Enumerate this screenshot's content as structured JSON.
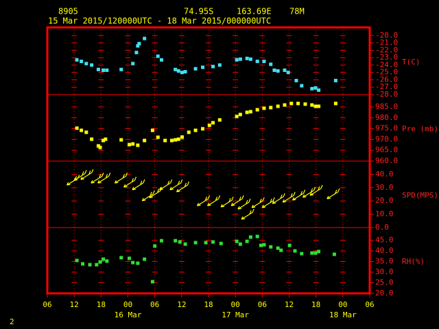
{
  "header": {
    "station": "8905",
    "lat": "74.95S",
    "lon": "163.69E",
    "elev": "78M",
    "period": "15 Mar 2015/120000UTC - 18 Mar 2015/000000UTC"
  },
  "page_number": "2",
  "chart_data": {
    "type": "meteogram",
    "xlim": [
      6,
      78
    ],
    "xticks": [
      {
        "value": 6,
        "label": "06"
      },
      {
        "value": 12,
        "label": "12"
      },
      {
        "value": 18,
        "label": "18"
      },
      {
        "value": 24,
        "label": "00"
      },
      {
        "value": 30,
        "label": "06"
      },
      {
        "value": 36,
        "label": "12"
      },
      {
        "value": 42,
        "label": "18"
      },
      {
        "value": 48,
        "label": "00"
      },
      {
        "value": 54,
        "label": "06"
      },
      {
        "value": 60,
        "label": "12"
      },
      {
        "value": 66,
        "label": "18"
      },
      {
        "value": 72,
        "label": "00"
      },
      {
        "value": 78,
        "label": "06"
      }
    ],
    "date_ticks": [
      {
        "value": 24,
        "label": "16 Mar"
      },
      {
        "value": 48,
        "label": "17 Mar"
      },
      {
        "value": 72,
        "label": "18 Mar"
      }
    ],
    "panels": [
      {
        "name": "T(C)",
        "kind": "dots",
        "color": "#40e0f0",
        "ylim": [
          -28,
          -18.9
        ],
        "yticks": [
          {
            "value": -20,
            "label": "-20.0"
          },
          {
            "value": -21,
            "label": "-21.0"
          },
          {
            "value": -22,
            "label": "-22.0"
          },
          {
            "value": -23,
            "label": "-23.0"
          },
          {
            "value": -24,
            "label": "-24.0"
          },
          {
            "value": -25,
            "label": "-25.0"
          },
          {
            "value": -26,
            "label": "-26.0"
          },
          {
            "value": -27,
            "label": "-27.0"
          },
          {
            "value": -28,
            "label": "-28.0"
          }
        ],
        "x": [
          12.6,
          13.6,
          14.7,
          15.9,
          17.4,
          18.5,
          19.3,
          22.5,
          25.1,
          25.9,
          26.2,
          26.5,
          27.7,
          30.7,
          31.5,
          34.6,
          35.3,
          36.1,
          36.8,
          39.1,
          40.7,
          43,
          44.5,
          48.3,
          49.1,
          50.6,
          51.4,
          52.9,
          54.4,
          55.9,
          56.7,
          57.5,
          59,
          59.8,
          61.6,
          62.8,
          65.1,
          65.9,
          66.6,
          70.4
        ],
        "values": [
          -23.3,
          -23.5,
          -23.8,
          -24.0,
          -24.6,
          -24.7,
          -24.7,
          -24.6,
          -23.8,
          -22.3,
          -21.4,
          -21.1,
          -20.4,
          -22.8,
          -23.3,
          -24.6,
          -24.8,
          -25.0,
          -24.9,
          -24.5,
          -24.3,
          -24.2,
          -24.0,
          -23.3,
          -23.2,
          -23.1,
          -23.2,
          -23.5,
          -23.5,
          -23.9,
          -24.7,
          -24.8,
          -24.7,
          -25.0,
          -26.1,
          -26.8,
          -27.2,
          -27.1,
          -27.4,
          -26.1
        ]
      },
      {
        "name": "Pre (mb)",
        "kind": "dots",
        "color": "#ffff00",
        "ylim": [
          960,
          990.7
        ],
        "yticks": [
          {
            "value": 985,
            "label": "985.0"
          },
          {
            "value": 980,
            "label": "980.0"
          },
          {
            "value": 975,
            "label": "975.0"
          },
          {
            "value": 970,
            "label": "970.0"
          },
          {
            "value": 965,
            "label": "965.0"
          },
          {
            "value": 960,
            "label": "960.0"
          }
        ],
        "x": [
          12.6,
          13.6,
          14.7,
          15.9,
          17.4,
          17.8,
          18.5,
          19,
          22.5,
          24.3,
          25.1,
          26.2,
          27.7,
          29.5,
          30.7,
          32.3,
          33.8,
          34.6,
          35.3,
          36.1,
          37.6,
          39.1,
          40.7,
          42.2,
          43,
          44.5,
          48.3,
          49.1,
          50.6,
          51.4,
          52.9,
          54.4,
          55.9,
          57.5,
          59,
          60.5,
          62,
          63.6,
          65.1,
          65.9,
          66.6,
          70.4
        ],
        "values": [
          975.2,
          974.2,
          973.3,
          970.1,
          967.0,
          966.3,
          969.5,
          970.1,
          969.8,
          967.6,
          967.9,
          967.3,
          969.5,
          974.2,
          971.0,
          969.5,
          969.5,
          969.8,
          970.1,
          971.1,
          973.3,
          974.2,
          974.9,
          976.5,
          977.7,
          979.0,
          980.6,
          981.5,
          982.5,
          982.8,
          983.7,
          984.4,
          984.7,
          985.3,
          985.9,
          986.6,
          986.6,
          986.3,
          985.9,
          985.3,
          985.3,
          986.6
        ]
      },
      {
        "name": "SPD(MPS)",
        "kind": "arrows",
        "color": "#ffff00",
        "ylim": [
          0,
          50
        ],
        "yticks": [
          {
            "value": 40,
            "label": "40.0"
          },
          {
            "value": 30,
            "label": "30.0"
          },
          {
            "value": 20,
            "label": "20.0"
          },
          {
            "value": 10,
            "label": "10.0"
          },
          {
            "value": 0,
            "label": "0.0"
          }
        ],
        "x": [
          11.6,
          13.2,
          14.7,
          17,
          18.5,
          22.3,
          24.3,
          26.2,
          28.4,
          30,
          32.3,
          34.6,
          36.1,
          40.7,
          43,
          46,
          48.3,
          49.8,
          50.6,
          52.9,
          55.2,
          57.5,
          59.8,
          62,
          64.3,
          65.9,
          69.7
        ],
        "values": [
          34.5,
          38,
          38.7,
          36,
          36,
          36,
          33,
          31,
          22.7,
          25,
          31,
          31,
          29.4,
          19,
          19,
          18,
          19,
          16.5,
          8.8,
          17.5,
          17.5,
          20.6,
          21.6,
          23.2,
          25.3,
          26.8,
          24.2
        ]
      },
      {
        "name": "RH(%)",
        "kind": "dots",
        "color": "#30e030",
        "ylim": [
          20,
          51
        ],
        "yticks": [
          {
            "value": 45,
            "label": "45.0"
          },
          {
            "value": 40,
            "label": "40.0"
          },
          {
            "value": 35,
            "label": "35.0"
          },
          {
            "value": 30,
            "label": "30.0"
          },
          {
            "value": 25,
            "label": "25.0"
          },
          {
            "value": 20,
            "label": "20.0"
          }
        ],
        "x": [
          12.6,
          13.9,
          15.5,
          17,
          17.8,
          18.5,
          19.3,
          22.5,
          24.3,
          25.1,
          26.2,
          27.7,
          29.5,
          30,
          31.5,
          34.6,
          35.6,
          36.8,
          39.1,
          41.4,
          43,
          44.8,
          48.3,
          49.1,
          50.6,
          51.4,
          52.9,
          53.7,
          54.4,
          55.9,
          57.5,
          58.2,
          60.1,
          61.3,
          62.8,
          65.1,
          65.9,
          66.6,
          70.1
        ],
        "values": [
          35.5,
          33.9,
          33.5,
          33.5,
          34.8,
          36.1,
          35.2,
          36.8,
          36.5,
          34.5,
          34.2,
          36.1,
          25.5,
          42.3,
          44.8,
          44.8,
          44.2,
          43.2,
          43.9,
          43.9,
          44.2,
          43.5,
          44.5,
          43.2,
          44.5,
          46.5,
          46.8,
          42.6,
          42.9,
          41.9,
          41.3,
          40.3,
          42.6,
          40,
          38.7,
          39,
          39,
          39.7,
          38.4
        ]
      }
    ]
  }
}
